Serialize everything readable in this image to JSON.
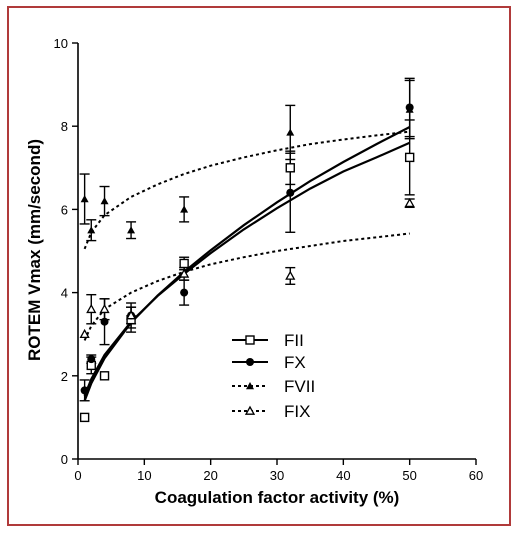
{
  "chart_data": {
    "type": "scatter",
    "title": "",
    "xlabel": "Coagulation factor activity (%)",
    "ylabel": "ROTEM Vmax (mm/second)",
    "xlim": [
      0,
      60
    ],
    "ylim": [
      0,
      10
    ],
    "xticks": [
      0,
      10,
      20,
      30,
      40,
      50,
      60
    ],
    "yticks": [
      0,
      2,
      4,
      6,
      8,
      10
    ],
    "grid": false,
    "legend_placement": "center",
    "series": [
      {
        "name": "FII",
        "marker": "open-square",
        "line": "solid",
        "points": [
          {
            "x": 1,
            "y": 1.0,
            "err": 0
          },
          {
            "x": 2,
            "y": 2.25,
            "err": 0.2
          },
          {
            "x": 4,
            "y": 2.0,
            "err": 0
          },
          {
            "x": 8,
            "y": 3.35,
            "err": 0.3
          },
          {
            "x": 16,
            "y": 4.7,
            "err": 0.15
          },
          {
            "x": 32,
            "y": 7.0,
            "err": 0.4
          },
          {
            "x": 50,
            "y": 7.25,
            "err": 0.9
          }
        ],
        "fit": [
          [
            1,
            1.52
          ],
          [
            2,
            1.92
          ],
          [
            4,
            2.5
          ],
          [
            8,
            3.3
          ],
          [
            12,
            3.92
          ],
          [
            16,
            4.45
          ],
          [
            20,
            4.95
          ],
          [
            25,
            5.52
          ],
          [
            30,
            6.03
          ],
          [
            35,
            6.5
          ],
          [
            40,
            6.91
          ],
          [
            45,
            7.25
          ],
          [
            50,
            7.6
          ]
        ]
      },
      {
        "name": "FX",
        "marker": "filled-circle",
        "line": "solid",
        "points": [
          {
            "x": 1,
            "y": 1.65,
            "err": 0.25
          },
          {
            "x": 2,
            "y": 2.4,
            "err": 0.1
          },
          {
            "x": 4,
            "y": 3.3,
            "err": 0.55
          },
          {
            "x": 8,
            "y": 3.45,
            "err": 0.3
          },
          {
            "x": 16,
            "y": 4.0,
            "err": 0.3
          },
          {
            "x": 32,
            "y": 6.4,
            "err": 0.95
          },
          {
            "x": 50,
            "y": 8.45,
            "err": 0.7
          }
        ],
        "fit": [
          [
            1,
            1.4
          ],
          [
            2,
            1.82
          ],
          [
            4,
            2.42
          ],
          [
            8,
            3.28
          ],
          [
            12,
            3.93
          ],
          [
            16,
            4.5
          ],
          [
            20,
            5.02
          ],
          [
            25,
            5.62
          ],
          [
            30,
            6.17
          ],
          [
            35,
            6.68
          ],
          [
            40,
            7.14
          ],
          [
            45,
            7.57
          ],
          [
            50,
            7.98
          ]
        ]
      },
      {
        "name": "FVII",
        "marker": "filled-triangle",
        "line": "dotted",
        "points": [
          {
            "x": 1,
            "y": 6.25,
            "err": 0.6
          },
          {
            "x": 2,
            "y": 5.5,
            "err": 0.25
          },
          {
            "x": 4,
            "y": 6.2,
            "err": 0.35
          },
          {
            "x": 8,
            "y": 5.5,
            "err": 0.2
          },
          {
            "x": 16,
            "y": 6.0,
            "err": 0.3
          },
          {
            "x": 32,
            "y": 7.85,
            "err": 0.65
          },
          {
            "x": 50,
            "y": 8.4,
            "err": 0.7
          }
        ],
        "fit": [
          [
            1,
            5.05
          ],
          [
            2,
            5.45
          ],
          [
            4,
            5.86
          ],
          [
            8,
            6.3
          ],
          [
            12,
            6.6
          ],
          [
            16,
            6.85
          ],
          [
            20,
            7.05
          ],
          [
            25,
            7.25
          ],
          [
            30,
            7.42
          ],
          [
            35,
            7.57
          ],
          [
            40,
            7.68
          ],
          [
            45,
            7.78
          ],
          [
            50,
            7.87
          ]
        ]
      },
      {
        "name": "FIX",
        "marker": "open-triangle",
        "line": "dotted",
        "points": [
          {
            "x": 1,
            "y": 3.0,
            "err": 0
          },
          {
            "x": 2,
            "y": 3.6,
            "err": 0.35
          },
          {
            "x": 4,
            "y": 3.6,
            "err": 0.25
          },
          {
            "x": 8,
            "y": 3.45,
            "err": 0.2
          },
          {
            "x": 16,
            "y": 4.45,
            "err": 0.15
          },
          {
            "x": 32,
            "y": 4.4,
            "err": 0.2
          },
          {
            "x": 50,
            "y": 6.15,
            "err": 0.1
          }
        ],
        "fit": [
          [
            1,
            2.85
          ],
          [
            2,
            3.2
          ],
          [
            4,
            3.6
          ],
          [
            8,
            4.0
          ],
          [
            12,
            4.28
          ],
          [
            16,
            4.5
          ],
          [
            20,
            4.68
          ],
          [
            25,
            4.85
          ],
          [
            30,
            5.0
          ],
          [
            35,
            5.12
          ],
          [
            40,
            5.24
          ],
          [
            45,
            5.33
          ],
          [
            50,
            5.42
          ]
        ]
      }
    ]
  }
}
